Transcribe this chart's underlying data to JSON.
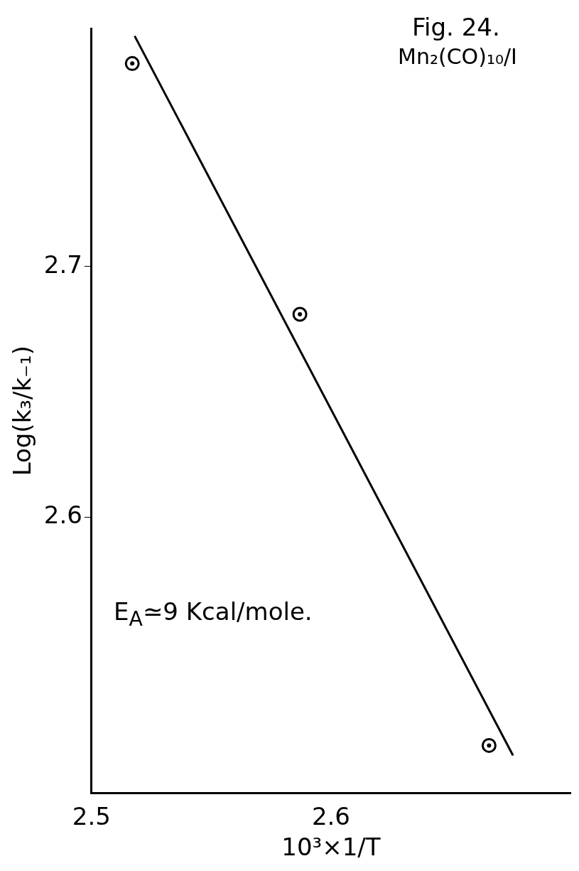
{
  "chart_data": {
    "type": "scatter",
    "title": "Fig. 24.",
    "subtitle": "Mn₂(CO)₁₀/I",
    "xlabel": "10³×1/T",
    "ylabel": "Log(k₃/k₋₁)",
    "annotations": [
      "E$_{A}$≃9 Kcal/mole."
    ],
    "x": [
      2.517,
      2.587,
      2.666
    ],
    "series": [
      {
        "color": "#000000",
        "values": [
          2.781,
          2.681,
          2.509
        ],
        "marker": "circle"
      },
      {
        "type": "line",
        "color": "#000000",
        "x": [
          2.518,
          2.676
        ],
        "values": [
          2.792,
          2.505
        ],
        "marker": "none",
        "line_style": "solid"
      }
    ],
    "xlim": [
      2.5,
      2.7
    ],
    "xticks": [
      2.5,
      2.6
    ],
    "ylim": [
      2.49,
      2.795
    ],
    "yticks": [
      2.6,
      2.7
    ],
    "grid": false,
    "legend": false
  }
}
